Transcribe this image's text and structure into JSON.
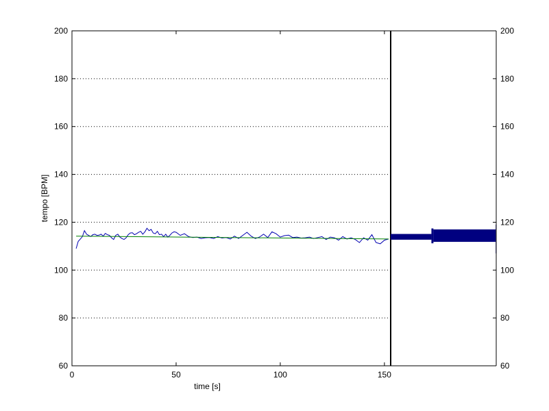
{
  "chart_data": [
    {
      "type": "line",
      "title": "",
      "xlabel": "time [s]",
      "ylabel": "tempo [BPM]",
      "xlim": [
        0,
        153
      ],
      "ylim": [
        60,
        200
      ],
      "x_ticks": [
        0,
        50,
        100,
        150
      ],
      "y_ticks": [
        60,
        80,
        100,
        120,
        140,
        160,
        180,
        200
      ],
      "grid": "y dotted",
      "colors": {
        "measured": "#0000b0",
        "trend": "#008000",
        "marker": "#000000"
      },
      "series": [
        {
          "x": [
            2,
            3,
            4,
            5,
            6,
            7,
            8,
            9,
            10,
            11,
            12,
            13,
            14,
            15,
            16,
            17,
            18,
            19,
            20,
            21,
            22,
            23,
            24,
            25,
            26,
            27,
            28,
            29,
            30,
            31,
            32,
            33,
            34,
            35,
            36,
            37,
            38,
            39,
            40,
            41,
            42,
            43,
            44,
            45,
            46,
            47,
            48,
            49,
            50,
            52,
            54,
            56,
            58,
            60,
            62,
            64,
            66,
            68,
            70,
            72,
            74,
            76,
            78,
            80,
            82,
            84,
            86,
            88,
            90,
            92,
            94,
            96,
            98,
            100,
            102,
            104,
            106,
            108,
            110,
            112,
            114,
            116,
            118,
            120,
            122,
            124,
            126,
            128,
            130,
            132,
            134,
            136,
            138,
            140,
            142,
            144,
            146,
            148,
            150,
            152
          ],
          "values": [
            109,
            112,
            113,
            114,
            116.5,
            115,
            114.5,
            114,
            114.8,
            115,
            114.5,
            114.6,
            115,
            114.2,
            115.3,
            114.8,
            114.5,
            113.5,
            112.8,
            114.5,
            115,
            113.8,
            113.2,
            112.8,
            113.5,
            114.8,
            115.5,
            115.6,
            114.8,
            115.2,
            115.8,
            116.2,
            115,
            116,
            117.5,
            116.5,
            117,
            115.5,
            115.2,
            116.2,
            114.8,
            115,
            114,
            115,
            113.8,
            114.5,
            115.5,
            116,
            115.8,
            114.5,
            115.2,
            114,
            113.6,
            113.8,
            113.2,
            113.5,
            113.6,
            113.2,
            114,
            113.4,
            113.6,
            113,
            114.2,
            113.2,
            114.5,
            115.8,
            114.2,
            113.2,
            113.8,
            115,
            113.6,
            116,
            115.2,
            113.8,
            114.4,
            114.6,
            113.6,
            113.8,
            113.4,
            113.5,
            113.8,
            113.2,
            113.6,
            114,
            112.8,
            113.8,
            113.5,
            112.5,
            114,
            113,
            113.5,
            112.8,
            111.5,
            113.5,
            112.5,
            114.8,
            111.5,
            111,
            112.5,
            113
          ]
        },
        {
          "x": [
            2,
            152
          ],
          "values": [
            114.2,
            113
          ]
        }
      ],
      "annotations": [
        "vertical line at x = 153"
      ]
    },
    {
      "type": "bar",
      "orientation": "horizontal-histogram",
      "xlim": [
        0,
        1
      ],
      "ylim": [
        60,
        200
      ],
      "y_ticks": [
        60,
        80,
        100,
        120,
        140,
        160,
        180,
        200
      ],
      "y_axis_side": "right",
      "color": "#000080",
      "bins": [
        {
          "y_low": 112.7,
          "y_high": 115.1,
          "value": 0.386
        },
        {
          "y_low": 111.2,
          "y_high": 117.4,
          "value": 0.631
        },
        {
          "y_low": 111.8,
          "y_high": 117.0,
          "value": 1.0
        },
        {
          "y_low": 107.0,
          "y_high": 119.0,
          "value": 1.0
        }
      ]
    }
  ]
}
